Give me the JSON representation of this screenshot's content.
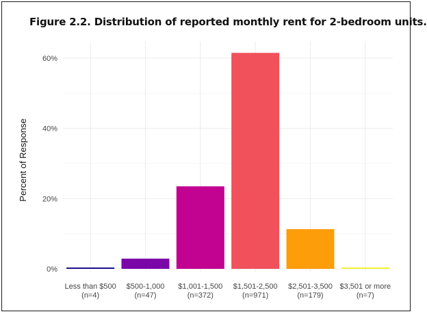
{
  "chart_data": {
    "type": "bar",
    "title": "Figure 2.2. Distribution of reported monthly rent for 2-bedroom units.",
    "xlabel": "",
    "ylabel": "Percent of Response",
    "categories": [
      "Less than $500",
      "$500-1,000",
      "$1,001-1,500",
      "$1,501-2,500",
      "$2,501-3,500",
      "$3,501 or more"
    ],
    "category_counts": [
      "(n=4)",
      "(n=47)",
      "(n=372)",
      "(n=971)",
      "(n=179)",
      "(n=7)"
    ],
    "values": [
      0.3,
      2.9,
      23.5,
      61.5,
      11.3,
      0.4
    ],
    "unit": "%",
    "ylim": [
      0,
      65
    ],
    "yticks": [
      0,
      20,
      40,
      60
    ],
    "ytick_labels": [
      "0%",
      "20%",
      "40%",
      "60%"
    ],
    "colors": [
      "#1c0f8c",
      "#7b06a8",
      "#c20290",
      "#f0515b",
      "#fd9d0a",
      "#f2f23a"
    ],
    "grid": true,
    "legend": "none"
  }
}
